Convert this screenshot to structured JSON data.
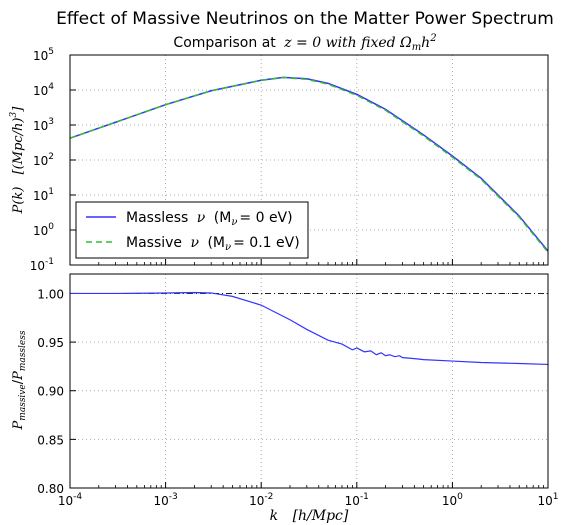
{
  "figure": {
    "title": "Effect of Massive Neutrinos on the Matter Power Spectrum",
    "subtitle_text": "Comparison at",
    "subtitle_math": "z = 0 with fixed Ω",
    "subtitle_sub": "m",
    "subtitle_tail": "h",
    "subtitle_sup": "2"
  },
  "chart_data": [
    {
      "type": "line",
      "title": "",
      "xscale": "log",
      "yscale": "log",
      "xlim": [
        0.0001,
        10
      ],
      "ylim": [
        0.1,
        100000
      ],
      "xlabel": "",
      "ylabel_main": "P(k)",
      "ylabel_unit": "[(Mpc/h)",
      "ylabel_unit_sup": "3",
      "ylabel_unit_close": "]",
      "y_tick_labels": [
        "10",
        "10",
        "10",
        "10",
        "10",
        "10",
        "10"
      ],
      "y_tick_exponents": [
        "-1",
        "0",
        "1",
        "2",
        "3",
        "4",
        "5"
      ],
      "grid": true,
      "legend_position": "lower-left",
      "series": [
        {
          "name_main": "Massless",
          "name_nu": "ν",
          "name_param": "(M",
          "name_param_sub": "ν",
          "name_param_tail": "= 0 eV)",
          "color": "#3333ff",
          "dash": "solid",
          "x": [
            0.0001,
            0.0003,
            0.001,
            0.003,
            0.01,
            0.017,
            0.03,
            0.05,
            0.1,
            0.2,
            0.5,
            1,
            2,
            5,
            10
          ],
          "y": [
            420,
            1200,
            3800,
            9500,
            19000,
            23000,
            21000,
            15500,
            7500,
            2800,
            520,
            130,
            30,
            2.5,
            0.25
          ]
        },
        {
          "name_main": "Massive",
          "name_nu": "ν",
          "name_param": "(M",
          "name_param_sub": "ν",
          "name_param_tail": "= 0.1 eV)",
          "color": "#33bb33",
          "dash": "dashed",
          "x": [
            0.0001,
            0.0003,
            0.001,
            0.003,
            0.01,
            0.017,
            0.03,
            0.05,
            0.1,
            0.2,
            0.5,
            1,
            2,
            5,
            10
          ],
          "y": [
            420,
            1200,
            3800,
            9500,
            18800,
            22600,
            20200,
            14700,
            7050,
            2630,
            485,
            121,
            28,
            2.33,
            0.232
          ]
        }
      ]
    },
    {
      "type": "line",
      "title": "",
      "xscale": "log",
      "xlim": [
        0.0001,
        10
      ],
      "ylim": [
        0.8,
        1.02
      ],
      "x_tick_labels": [
        "10",
        "10",
        "10",
        "10",
        "10",
        "10"
      ],
      "x_tick_exponents": [
        "-4",
        "-3",
        "-2",
        "-1",
        "0",
        "1"
      ],
      "y_tick_labels": [
        "0.80",
        "0.85",
        "0.90",
        "0.95",
        "1.00"
      ],
      "xlabel_main": "k",
      "xlabel_unit": "[h/Mpc]",
      "ylabel_main": "P",
      "ylabel_sub1": "massive",
      "ylabel_sep": "/",
      "ylabel_main2": "P",
      "ylabel_sub2": "massless",
      "grid": true,
      "reference_line": 1.0,
      "series": [
        {
          "color": "#3333ff",
          "x": [
            0.0001,
            0.0003,
            0.001,
            0.002,
            0.003,
            0.005,
            0.01,
            0.02,
            0.03,
            0.05,
            0.07,
            0.09,
            0.1,
            0.12,
            0.14,
            0.16,
            0.18,
            0.2,
            0.22,
            0.25,
            0.28,
            0.3,
            0.35,
            0.4,
            0.5,
            1,
            2,
            5,
            10
          ],
          "y": [
            1.0,
            1.0,
            1.0005,
            1.001,
            1.0005,
            0.997,
            0.988,
            0.973,
            0.963,
            0.952,
            0.948,
            0.942,
            0.944,
            0.94,
            0.941,
            0.937,
            0.939,
            0.936,
            0.937,
            0.935,
            0.936,
            0.934,
            0.9335,
            0.933,
            0.932,
            0.9305,
            0.929,
            0.928,
            0.927
          ]
        }
      ]
    }
  ]
}
